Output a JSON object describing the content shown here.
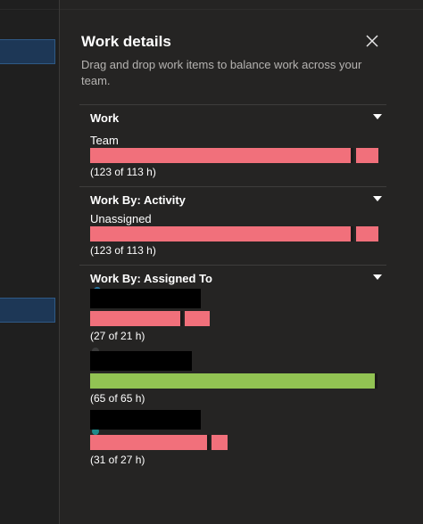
{
  "panel": {
    "title": "Work details",
    "description": "Drag and drop work items to balance work across your team.",
    "close_icon": "close-icon"
  },
  "sections": [
    {
      "title": "Work",
      "rows": [
        {
          "label": "Team",
          "capacity_text": "(123 of 113 h)",
          "assigned_hours": 123,
          "capacity_hours": 113,
          "status": "over"
        }
      ]
    },
    {
      "title": "Work By: Activity",
      "rows": [
        {
          "label": "Unassigned",
          "capacity_text": "(123 of 113 h)",
          "assigned_hours": 123,
          "capacity_hours": 113,
          "status": "over"
        }
      ]
    },
    {
      "title": "Work By: Assigned To",
      "rows": [
        {
          "capacity_text": "(27 of 21 h)",
          "assigned_hours": 27,
          "capacity_hours": 21,
          "status": "over"
        },
        {
          "capacity_text": "(65 of 65 h)",
          "assigned_hours": 65,
          "capacity_hours": 65,
          "status": "ok"
        },
        {
          "capacity_text": "(31 of 27 h)",
          "assigned_hours": 31,
          "capacity_hours": 27,
          "status": "over"
        }
      ]
    }
  ],
  "colors": {
    "over": "#f1707b",
    "ok": "#92c353",
    "panel_bg": "#252423",
    "accent_tile": "#1d3756"
  }
}
